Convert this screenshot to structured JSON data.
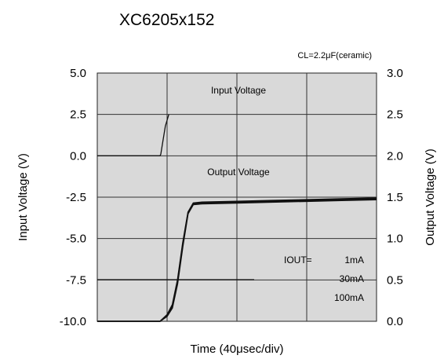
{
  "chart_data": {
    "type": "line",
    "title": "XC6205x152",
    "condition": "CL=2.2μF(ceramic)",
    "xlabel": "Time (40μsec/div)",
    "xlim": [
      0,
      8
    ],
    "grid": true,
    "legend": "none",
    "y_left": {
      "label": "Input  Voltage (V)",
      "ylim": [
        -10.0,
        5.0
      ],
      "ticks": [
        "5.0",
        "2.5",
        "0.0",
        "-2.5",
        "-5.0",
        "-7.5",
        "-10.0"
      ]
    },
    "y_right": {
      "label": "Output Voltage (V)",
      "ylim": [
        0.0,
        3.0
      ],
      "ticks": [
        "3.0",
        "2.5",
        "2.0",
        "1.5",
        "1.0",
        "0.5",
        "0.0"
      ]
    },
    "annotations": {
      "input_label": "Input Voltage",
      "output_label": "Output Voltage",
      "iout_label": "IOUT=",
      "iout_values": [
        "1mA",
        "30mA",
        "100mA"
      ]
    },
    "series": [
      {
        "name": "Input Voltage",
        "axis": "left",
        "x": [
          0,
          1.8,
          1.82,
          1.88,
          1.95,
          2.05
        ],
        "y": [
          0.0,
          0.0,
          0.1,
          0.9,
          1.8,
          2.5
        ]
      },
      {
        "name": "1mA",
        "axis": "right",
        "x": [
          0,
          1.8,
          2.0,
          2.15,
          2.3,
          2.45,
          2.6,
          2.75,
          3.0,
          4.0,
          5.0,
          6.0,
          7.0,
          8.0
        ],
        "y": [
          0.0,
          0.0,
          0.08,
          0.2,
          0.5,
          0.95,
          1.32,
          1.43,
          1.44,
          1.45,
          1.46,
          1.47,
          1.48,
          1.49
        ]
      },
      {
        "name": "30mA",
        "axis": "right",
        "x": [
          0,
          1.8,
          2.0,
          2.15,
          2.3,
          2.45,
          2.6,
          2.75,
          3.0,
          4.0,
          5.0,
          6.0,
          7.0,
          8.0
        ],
        "y": [
          0.0,
          0.0,
          0.07,
          0.18,
          0.48,
          0.93,
          1.31,
          1.42,
          1.43,
          1.44,
          1.45,
          1.46,
          1.47,
          1.48
        ]
      },
      {
        "name": "100mA",
        "axis": "right",
        "x": [
          0,
          1.8,
          2.0,
          2.15,
          2.3,
          2.45,
          2.6,
          2.75,
          3.0,
          4.0,
          5.0,
          6.0,
          7.0,
          8.0
        ],
        "y": [
          0.0,
          0.0,
          0.06,
          0.16,
          0.45,
          0.9,
          1.3,
          1.41,
          1.42,
          1.43,
          1.44,
          1.45,
          1.46,
          1.47
        ]
      }
    ]
  }
}
